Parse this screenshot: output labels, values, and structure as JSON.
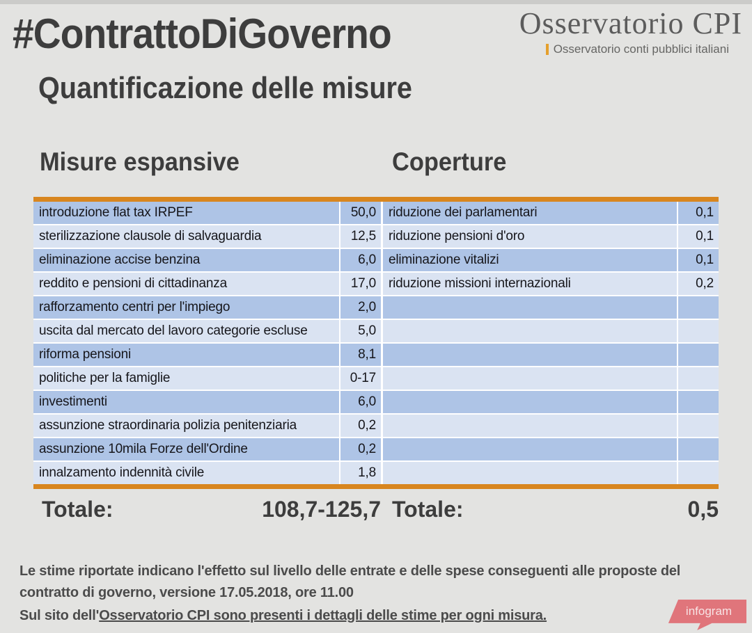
{
  "header": {
    "hashtag_title": "#ContrattoDiGoverno",
    "logo": {
      "name": "Osservatorio CPI",
      "tagline": "Osservatorio conti pubblici italiani"
    }
  },
  "subtitle": "Quantificazione delle misure",
  "tables": {
    "left": {
      "heading": "Misure espansive",
      "rows": [
        {
          "label": "introduzione flat tax IRPEF",
          "value": "50,0"
        },
        {
          "label": "sterilizzazione clausole di salvaguardia",
          "value": "12,5"
        },
        {
          "label": "eliminazione accise benzina",
          "value": "6,0"
        },
        {
          "label": "reddito e pensioni di cittadinanza",
          "value": "17,0"
        },
        {
          "label": "rafforzamento centri per l'impiego",
          "value": "2,0"
        },
        {
          "label": "uscita dal mercato del lavoro categorie escluse",
          "value": "5,0"
        },
        {
          "label": "riforma pensioni",
          "value": "8,1"
        },
        {
          "label": "politiche per la famiglie",
          "value": "0-17"
        },
        {
          "label": "investimenti",
          "value": "6,0"
        },
        {
          "label": "assunzione straordinaria polizia penitenziaria",
          "value": "0,2"
        },
        {
          "label": "assunzione 10mila Forze dell'Ordine",
          "value": "0,2"
        },
        {
          "label": "innalzamento indennità civile",
          "value": "1,8"
        }
      ],
      "total_label": "Totale:",
      "total_value": "108,7-125,7"
    },
    "right": {
      "heading": "Coperture",
      "rows": [
        {
          "label": "riduzione dei parlamentari",
          "value": "0,1"
        },
        {
          "label": "riduzione pensioni d'oro",
          "value": "0,1"
        },
        {
          "label": "eliminazione vitalizi",
          "value": "0,1"
        },
        {
          "label": "riduzione missioni internazionali",
          "value": "0,2"
        },
        {
          "label": "",
          "value": ""
        },
        {
          "label": "",
          "value": ""
        },
        {
          "label": "",
          "value": ""
        },
        {
          "label": "",
          "value": ""
        },
        {
          "label": "",
          "value": ""
        },
        {
          "label": "",
          "value": ""
        },
        {
          "label": "",
          "value": ""
        },
        {
          "label": "",
          "value": ""
        }
      ],
      "total_label": "Totale:",
      "total_value": "0,5"
    }
  },
  "footer": {
    "note": "Le stime riportate indicano l'effetto sul livello delle entrate e delle spese conseguenti alle proposte del contratto di governo, versione 17.05.2018, ore 11.00",
    "link_prefix": "Sul sito dell'",
    "link_text": "Osservatorio CPI sono presenti i dettagli delle stime per ogni misura.",
    "badge_label": "infogram"
  },
  "colors": {
    "accent_orange": "#d8861f",
    "row_dark_blue": "#aec4e6",
    "row_light_blue": "#dae3f2",
    "logo_tick_orange": "#e5a02c",
    "badge_pink": "#e0757b",
    "background_gray": "#e3e3e1"
  },
  "chart_data": [
    {
      "type": "table",
      "title": "Misure espansive",
      "rows": [
        [
          "introduzione flat tax IRPEF",
          "50,0"
        ],
        [
          "sterilizzazione clausole di salvaguardia",
          "12,5"
        ],
        [
          "eliminazione accise benzina",
          "6,0"
        ],
        [
          "reddito e pensioni di cittadinanza",
          "17,0"
        ],
        [
          "rafforzamento centri per l'impiego",
          "2,0"
        ],
        [
          "uscita dal mercato del lavoro categorie escluse",
          "5,0"
        ],
        [
          "riforma pensioni",
          "8,1"
        ],
        [
          "politiche per la famiglie",
          "0-17"
        ],
        [
          "investimenti",
          "6,0"
        ],
        [
          "assunzione straordinaria polizia penitenziaria",
          "0,2"
        ],
        [
          "assunzione 10mila Forze dell'Ordine",
          "0,2"
        ],
        [
          "innalzamento indennità civile",
          "1,8"
        ]
      ],
      "total": [
        "Totale:",
        "108,7-125,7"
      ]
    },
    {
      "type": "table",
      "title": "Coperture",
      "rows": [
        [
          "riduzione dei parlamentari",
          "0,1"
        ],
        [
          "riduzione pensioni d'oro",
          "0,1"
        ],
        [
          "eliminazione vitalizi",
          "0,1"
        ],
        [
          "riduzione missioni internazionali",
          "0,2"
        ]
      ],
      "total": [
        "Totale:",
        "0,5"
      ]
    }
  ]
}
